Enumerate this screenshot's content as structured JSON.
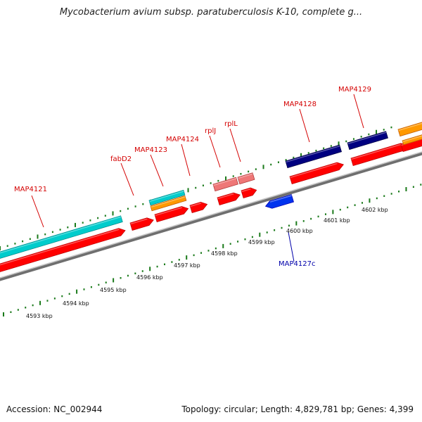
{
  "title": "Mycobacterium avium subsp. paratuberculosis K-10, complete g...",
  "footer": {
    "accession": "Accession: NC_002944",
    "summary": "Topology: circular; Length: 4,829,781 bp; Genes: 4,399"
  },
  "colors": {
    "forward_label": "#d40000",
    "reverse_label": "#0000aa",
    "tick": "#1a7a1a",
    "backbone": "#888888",
    "cds": "#ff0000",
    "rrna_like": "#00cccc",
    "orange": "#ff9900",
    "navy": "#000080",
    "pink": "#ee7777",
    "blue": "#0033ee"
  },
  "kbp_labels": [
    "4593 kbp",
    "4594 kbp",
    "4595 kbp",
    "4596 kbp",
    "4597 kbp",
    "4598 kbp",
    "4599 kbp",
    "4600 kbp",
    "4601 kbp",
    "4602 kbp"
  ],
  "gene_labels": [
    {
      "text": "MAP4121",
      "strand": "forward"
    },
    {
      "text": "fabD2",
      "strand": "forward"
    },
    {
      "text": "MAP4123",
      "strand": "forward"
    },
    {
      "text": "MAP4124",
      "strand": "forward"
    },
    {
      "text": "rplJ",
      "strand": "forward"
    },
    {
      "text": "rplL",
      "strand": "forward"
    },
    {
      "text": "MAP4128",
      "strand": "forward"
    },
    {
      "text": "MAP4129",
      "strand": "forward"
    },
    {
      "text": "MAP4127c",
      "strand": "reverse"
    }
  ]
}
